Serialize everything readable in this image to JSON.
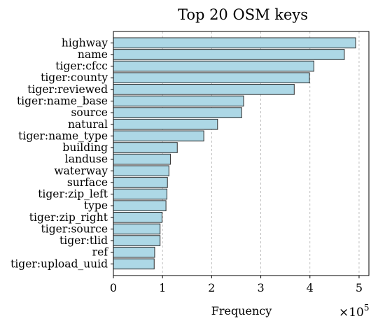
{
  "chart_data": {
    "type": "bar",
    "orientation": "horizontal",
    "title": "Top 20 OSM keys",
    "xlabel": "Frequency",
    "ylabel": "",
    "x_scale_multiplier_label": "×10",
    "x_scale_multiplier_exponent": "5",
    "xlim": [
      0,
      5.2
    ],
    "xticks": [
      0,
      1,
      2,
      3,
      4,
      5
    ],
    "xtick_labels": [
      "0",
      "1",
      "2",
      "3",
      "4",
      "5"
    ],
    "grid": "vertical-dashed",
    "bar_color": "#add8e6",
    "bar_edge_color": "#2b2b2b",
    "categories": [
      "highway",
      "name",
      "tiger:cfcc",
      "tiger:county",
      "tiger:reviewed",
      "tiger:name_base",
      "source",
      "natural",
      "tiger:name_type",
      "building",
      "landuse",
      "waterway",
      "surface",
      "tiger:zip_left",
      "type",
      "tiger:zip_right",
      "tiger:source",
      "tiger:tlid",
      "ref",
      "tiger:upload_uuid"
    ],
    "values": [
      4.93,
      4.7,
      4.08,
      3.99,
      3.68,
      2.65,
      2.61,
      2.12,
      1.84,
      1.3,
      1.16,
      1.13,
      1.1,
      1.09,
      1.07,
      0.99,
      0.95,
      0.95,
      0.84,
      0.83
    ]
  }
}
